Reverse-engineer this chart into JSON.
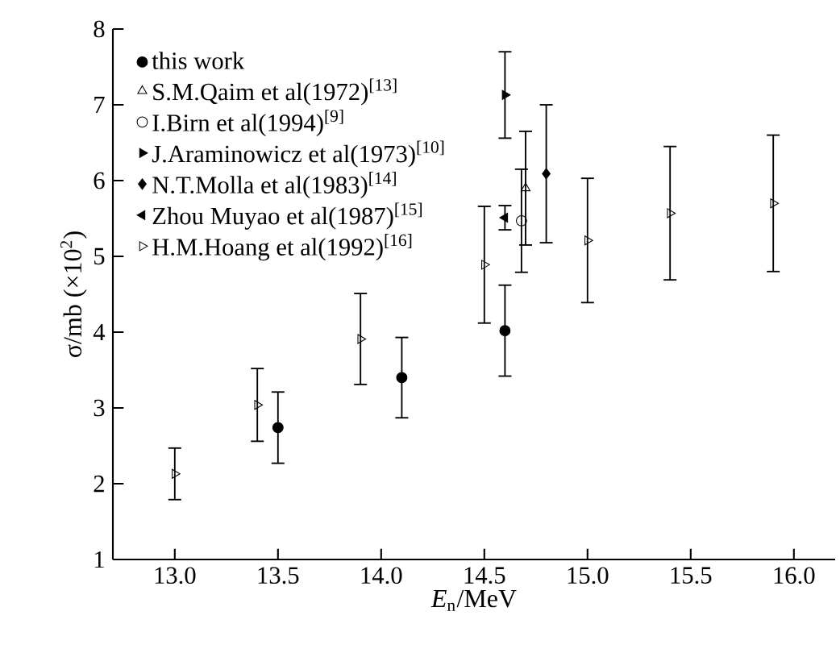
{
  "chart_data": {
    "type": "scatter",
    "xlabel": "*E*$_{n}$/MeV",
    "ylabel": "σ/mb  (×10$^{2}$)",
    "xlim": [
      12.7,
      16.2
    ],
    "xticks": [
      {
        "value": 13,
        "label": "13.0"
      },
      13.5,
      {
        "value": 14,
        "label": "14.0"
      },
      14.5,
      {
        "value": 15,
        "label": "15.0"
      },
      15.5,
      {
        "value": 16,
        "label": "16.0"
      }
    ],
    "ylim": [
      1,
      8
    ],
    "yticks": [
      1,
      2,
      3,
      4,
      5,
      6,
      7,
      8
    ],
    "grid": false,
    "legend": "top left",
    "series": [
      {
        "name": "this work",
        "color": "#000000",
        "marker": "circle",
        "x": [
          13.5,
          14.1,
          14.6
        ],
        "values": [
          2.74,
          3.4,
          4.02
        ],
        "errors": [
          0.47,
          0.53,
          0.6
        ]
      },
      {
        "name": "S.M.Qaim et al(1972)$^{[13]}$",
        "color": "#000000",
        "marker": "triangle-open",
        "x": [
          14.7
        ],
        "values": [
          5.9
        ],
        "errors": [
          0.75
        ]
      },
      {
        "name": "I.Birn et al(1994)$^{[9]}$",
        "color": "#000000",
        "marker": "circle-open",
        "x": [
          14.68
        ],
        "values": [
          5.47
        ],
        "errors": [
          0.68
        ]
      },
      {
        "name": "J.Araminowicz et al(1973)$^{[10]}$",
        "color": "#000000",
        "marker": "triangle-right",
        "x": [
          14.6
        ],
        "values": [
          7.13
        ],
        "errors": [
          0.57
        ]
      },
      {
        "name": "N.T.Molla et al(1983)$^{[14]}$",
        "color": "#000000",
        "marker": "diamond",
        "x": [
          14.8
        ],
        "values": [
          6.09
        ],
        "errors": [
          0.91
        ]
      },
      {
        "name": "Zhou Muyao et al(1987)$^{[15]}$",
        "color": "#000000",
        "marker": "triangle-left",
        "x": [
          14.6
        ],
        "values": [
          5.51
        ],
        "errors": [
          0.16
        ]
      },
      {
        "name": "H.M.Hoang et al(1992)$^{[16]}$",
        "color": "#000000",
        "marker": "triangle-right-open",
        "x": [
          13.0,
          13.4,
          13.9,
          14.5,
          15.0,
          15.4,
          15.9
        ],
        "values": [
          2.13,
          3.04,
          3.91,
          4.89,
          5.21,
          5.57,
          5.7
        ],
        "errors": [
          0.34,
          0.48,
          0.6,
          0.77,
          0.82,
          0.88,
          0.9
        ]
      }
    ]
  }
}
